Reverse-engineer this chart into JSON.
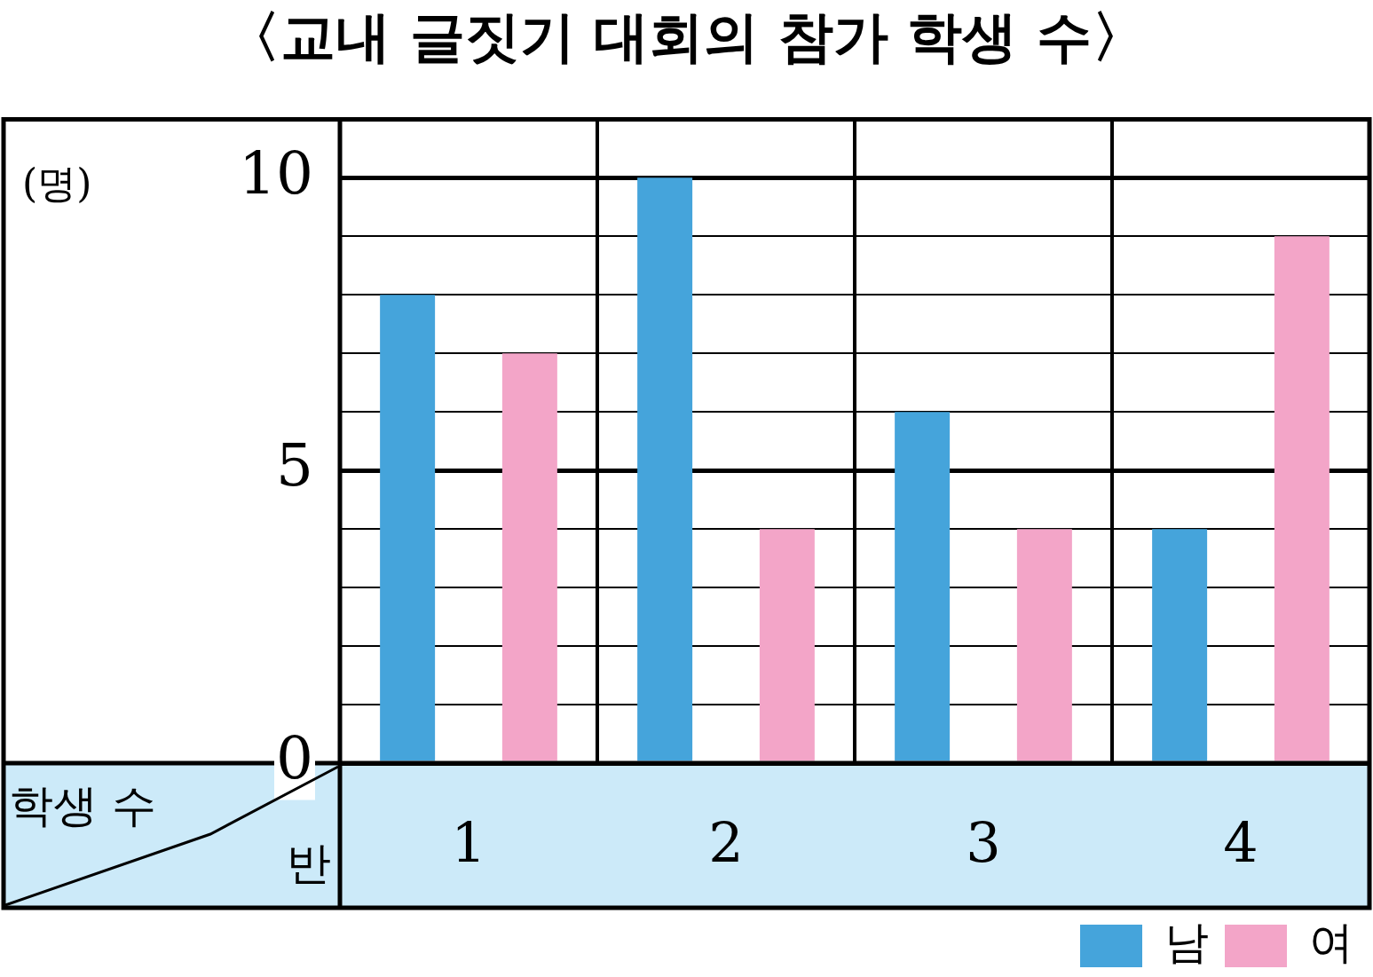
{
  "chart_data": {
    "type": "bar",
    "title": "〈교내 글짓기 대회의 참가 학생 수〉",
    "xlabel": "반",
    "ylabel": "학생 수",
    "annotations": [
      "(명)"
    ],
    "categories": [
      "1",
      "2",
      "3",
      "4"
    ],
    "series": [
      {
        "name": "남",
        "color": "#45a4db",
        "values": [
          8,
          10,
          6,
          4
        ]
      },
      {
        "name": "여",
        "color": "#f3a5c8",
        "values": [
          7,
          4,
          4,
          9
        ]
      }
    ],
    "ylim": [
      0,
      11
    ],
    "yticks": [
      0,
      {
        "value": 1,
        "label": null
      },
      {
        "value": 2,
        "label": null
      },
      {
        "value": 3,
        "label": null
      },
      {
        "value": 4,
        "label": null
      },
      5,
      {
        "value": 6,
        "label": null
      },
      {
        "value": 7,
        "label": null
      },
      {
        "value": 8,
        "label": null
      },
      {
        "value": 9,
        "label": null
      },
      10
    ],
    "grid": true,
    "legend": "bottom right"
  }
}
